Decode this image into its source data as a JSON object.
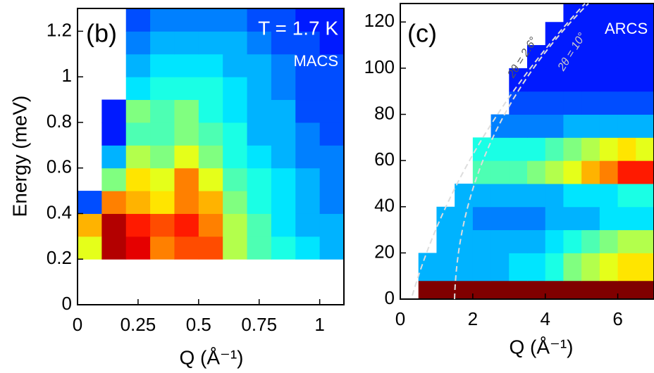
{
  "chart_data": [
    {
      "type": "heatmap",
      "label": "(b)",
      "annotations": [
        "T = 1.7 K",
        "MACS"
      ],
      "xlabel": "Q (Å⁻¹)",
      "ylabel": "Energy (meV)",
      "colormap": "jet",
      "xlim": [
        0,
        1.1
      ],
      "ylim": [
        0,
        1.3
      ],
      "xticks": [
        0,
        0.25,
        0.5,
        0.75,
        1
      ],
      "yticks": [
        0,
        0.2,
        0.4,
        0.6,
        0.8,
        1,
        1.2
      ],
      "x_edges": [
        0,
        0.1,
        0.2,
        0.3,
        0.4,
        0.5,
        0.6,
        0.7,
        0.8,
        0.9,
        1.0,
        1.1
      ],
      "y_edges": [
        0.2,
        0.3,
        0.4,
        0.5,
        0.6,
        0.7,
        0.8,
        0.9,
        1.0,
        1.1,
        1.2,
        1.3
      ],
      "z": [
        [
          0.6,
          0.95,
          0.9,
          0.75,
          0.8,
          0.8,
          0.55,
          0.45,
          0.4,
          0.35,
          0.3
        ],
        [
          0.7,
          0.95,
          0.85,
          0.8,
          0.85,
          0.75,
          0.55,
          0.45,
          0.35,
          0.3,
          0.3
        ],
        [
          0.2,
          0.75,
          0.7,
          0.65,
          0.75,
          0.7,
          0.5,
          0.4,
          0.35,
          0.3,
          0.25
        ],
        [
          null,
          0.5,
          0.65,
          0.6,
          0.75,
          0.6,
          0.45,
          0.4,
          0.35,
          0.3,
          0.25
        ],
        [
          null,
          0.3,
          0.55,
          0.5,
          0.6,
          0.5,
          0.4,
          0.35,
          0.3,
          0.25,
          0.25
        ],
        [
          null,
          0.15,
          0.45,
          0.45,
          0.5,
          0.45,
          0.4,
          0.3,
          0.3,
          0.25,
          0.2
        ],
        [
          null,
          0.15,
          0.5,
          0.45,
          0.5,
          0.4,
          0.35,
          0.3,
          0.3,
          0.2,
          0.2
        ],
        [
          null,
          null,
          0.35,
          0.4,
          0.4,
          0.4,
          0.35,
          0.3,
          0.25,
          0.2,
          0.2
        ],
        [
          null,
          null,
          0.3,
          0.35,
          0.35,
          0.35,
          0.3,
          0.3,
          0.25,
          0.2,
          0.2
        ],
        [
          null,
          null,
          0.25,
          0.3,
          0.3,
          0.3,
          0.3,
          0.25,
          0.2,
          0.2,
          0.15
        ],
        [
          null,
          null,
          0.2,
          0.25,
          0.25,
          0.25,
          0.25,
          0.2,
          0.2,
          0.15,
          0.15
        ]
      ]
    },
    {
      "type": "heatmap",
      "label": "(c)",
      "annotations": [
        "ARCS",
        "2θ = 2.6°",
        "2θ = 10°"
      ],
      "xlabel": "Q (Å⁻¹)",
      "colormap": "jet",
      "xlim": [
        0,
        7
      ],
      "ylim": [
        0,
        128
      ],
      "xticks": [
        0,
        2,
        4,
        6
      ],
      "yticks": [
        0,
        20,
        40,
        60,
        80,
        100,
        120
      ],
      "x_edges": [
        0,
        0.5,
        1,
        1.5,
        2,
        2.5,
        3,
        3.5,
        4,
        4.5,
        5,
        5.5,
        6,
        6.5,
        7
      ],
      "y_edges": [
        0,
        8,
        20,
        30,
        40,
        50,
        60,
        70,
        80,
        90,
        100,
        110,
        120,
        128
      ],
      "z": [
        [
          null,
          1,
          1,
          1,
          1,
          1,
          1,
          1,
          1,
          1,
          1,
          1,
          1,
          1
        ],
        [
          null,
          0.3,
          0.3,
          0.3,
          0.3,
          0.3,
          0.35,
          0.35,
          0.4,
          0.5,
          0.55,
          0.6,
          0.65,
          0.65
        ],
        [
          null,
          null,
          0.3,
          0.3,
          0.3,
          0.3,
          0.3,
          0.3,
          0.35,
          0.4,
          0.45,
          0.5,
          0.55,
          0.55
        ],
        [
          null,
          null,
          0.3,
          0.3,
          0.25,
          0.25,
          0.25,
          0.25,
          0.3,
          0.3,
          0.3,
          0.35,
          0.35,
          0.35
        ],
        [
          null,
          null,
          null,
          0.3,
          0.3,
          0.3,
          0.3,
          0.3,
          0.3,
          0.35,
          0.35,
          0.35,
          0.4,
          0.4
        ],
        [
          null,
          null,
          null,
          null,
          0.45,
          0.45,
          0.45,
          0.5,
          0.55,
          0.6,
          0.7,
          0.75,
          0.85,
          0.85
        ],
        [
          null,
          null,
          null,
          null,
          0.4,
          0.4,
          0.4,
          0.4,
          0.45,
          0.5,
          0.55,
          0.6,
          0.65,
          0.6
        ],
        [
          null,
          null,
          null,
          null,
          null,
          0.25,
          0.25,
          0.25,
          0.25,
          0.3,
          0.3,
          0.3,
          0.3,
          0.3
        ],
        [
          null,
          null,
          null,
          null,
          null,
          null,
          0.2,
          0.2,
          0.2,
          0.2,
          0.2,
          0.2,
          0.2,
          0.2
        ],
        [
          null,
          null,
          null,
          null,
          null,
          null,
          0.15,
          0.15,
          0.15,
          0.15,
          0.15,
          0.15,
          0.15,
          0.15
        ],
        [
          null,
          null,
          null,
          null,
          null,
          null,
          null,
          0.15,
          0.15,
          0.15,
          0.15,
          0.15,
          0.15,
          0.15
        ],
        [
          null,
          null,
          null,
          null,
          null,
          null,
          null,
          null,
          0.15,
          0.15,
          0.15,
          0.15,
          0.15,
          0.15
        ],
        [
          null,
          null,
          null,
          null,
          null,
          null,
          null,
          null,
          null,
          0.15,
          0.15,
          0.15,
          0.15,
          0.15
        ]
      ]
    }
  ]
}
